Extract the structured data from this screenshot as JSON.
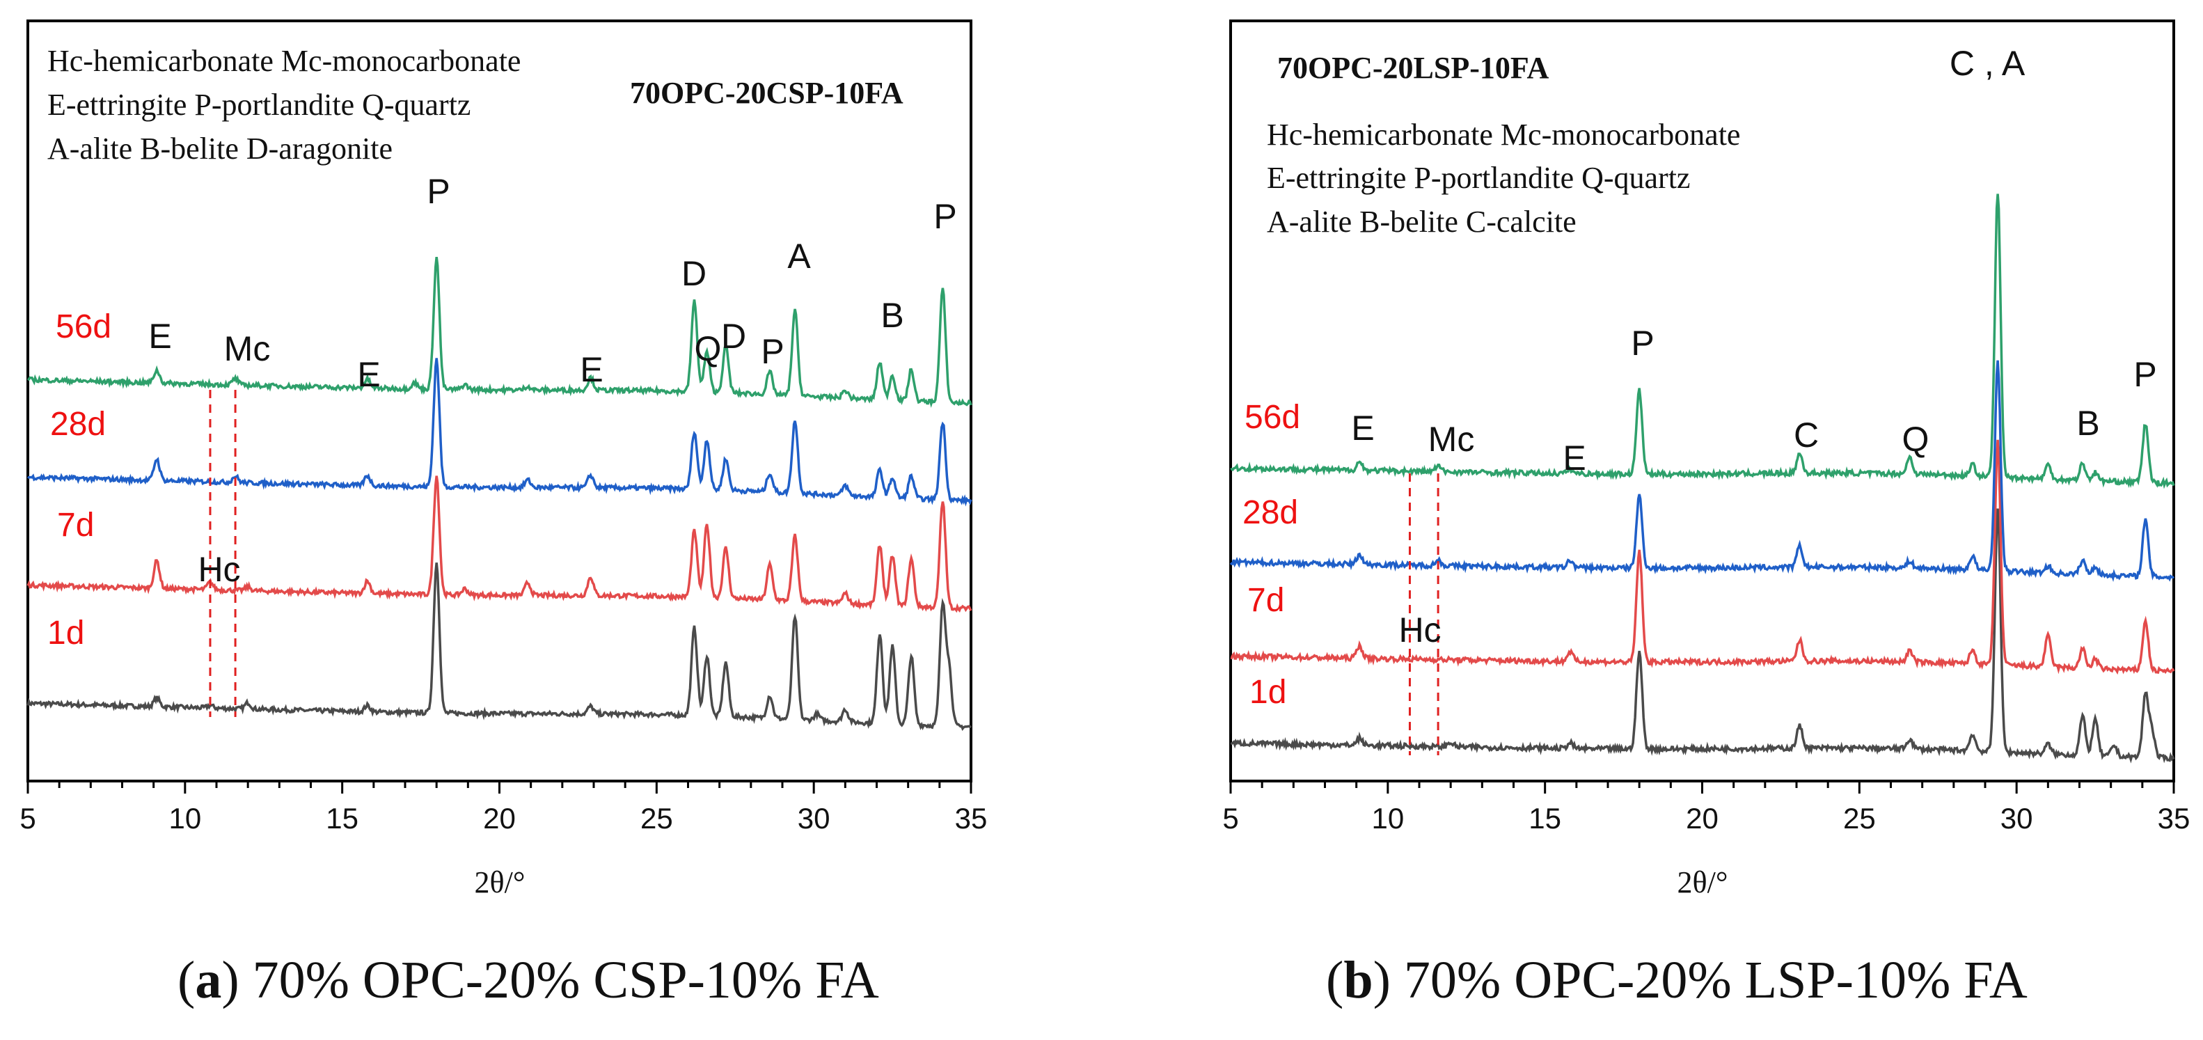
{
  "captions": {
    "a_letter": "a",
    "a_text": "70% OPC-20% CSP-10% FA",
    "b_letter": "b",
    "b_text": "70% OPC-20% LSP-10% FA"
  },
  "colors": {
    "56d": "#2ea06b",
    "28d": "#1f5fc8",
    "7d": "#e34a4a",
    "1d": "#4a4a4a",
    "ages": "#ee1111",
    "marker": "#e02020"
  },
  "chart_data": [
    {
      "type": "line",
      "panel": "a",
      "title": "70OPC-20CSP-10FA",
      "legend_lines": [
        "Hc-hemicarbonate Mc-monocarbonate",
        "E-ettringite P-portlandite Q-quartz",
        "A-alite B-belite D-aragonite"
      ],
      "xlabel": "2θ/°",
      "ylabel": "",
      "xlim": [
        5,
        35
      ],
      "xticks": [
        5,
        10,
        15,
        20,
        25,
        30,
        35
      ],
      "yticks": [],
      "series": [
        {
          "name": "56d",
          "offset": 3,
          "slope": 0.12,
          "peaks": [
            [
              9.1,
              0.1
            ],
            [
              11.6,
              0.05
            ],
            [
              15.8,
              0.07
            ],
            [
              17.3,
              0.05
            ],
            [
              18.0,
              1.05
            ],
            [
              18.9,
              0.04
            ],
            [
              20.9,
              0.03
            ],
            [
              22.9,
              0.1
            ],
            [
              26.2,
              0.72
            ],
            [
              26.6,
              0.32
            ],
            [
              27.2,
              0.37
            ],
            [
              28.6,
              0.18
            ],
            [
              29.4,
              0.68
            ],
            [
              31.0,
              0.06
            ],
            [
              32.1,
              0.3
            ],
            [
              32.5,
              0.2
            ],
            [
              33.1,
              0.25
            ],
            [
              34.1,
              0.9
            ]
          ]
        },
        {
          "name": "28d",
          "offset": 2,
          "slope": 0.12,
          "peaks": [
            [
              9.1,
              0.17
            ],
            [
              11.6,
              0.05
            ],
            [
              15.8,
              0.08
            ],
            [
              18.0,
              1.02
            ],
            [
              20.9,
              0.06
            ],
            [
              22.9,
              0.1
            ],
            [
              26.2,
              0.46
            ],
            [
              26.6,
              0.4
            ],
            [
              27.2,
              0.25
            ],
            [
              28.6,
              0.15
            ],
            [
              29.4,
              0.58
            ],
            [
              31.0,
              0.08
            ],
            [
              32.1,
              0.22
            ],
            [
              32.5,
              0.16
            ],
            [
              33.1,
              0.18
            ],
            [
              34.1,
              0.62
            ]
          ]
        },
        {
          "name": "7d",
          "offset": 1,
          "slope": 0.12,
          "peaks": [
            [
              9.1,
              0.22
            ],
            [
              10.8,
              0.06
            ],
            [
              12.0,
              0.03
            ],
            [
              15.8,
              0.1
            ],
            [
              18.0,
              0.95
            ],
            [
              18.9,
              0.05
            ],
            [
              20.9,
              0.1
            ],
            [
              22.9,
              0.15
            ],
            [
              26.2,
              0.53
            ],
            [
              26.6,
              0.58
            ],
            [
              27.2,
              0.4
            ],
            [
              28.6,
              0.28
            ],
            [
              29.4,
              0.52
            ],
            [
              31.0,
              0.08
            ],
            [
              32.1,
              0.48
            ],
            [
              32.5,
              0.4
            ],
            [
              33.1,
              0.38
            ],
            [
              34.1,
              0.85
            ]
          ]
        },
        {
          "name": "1d",
          "offset": 0,
          "slope": 0.12,
          "peaks": [
            [
              9.1,
              0.07
            ],
            [
              10.8,
              0.02
            ],
            [
              12.0,
              0.05
            ],
            [
              15.8,
              0.05
            ],
            [
              18.0,
              1.2
            ],
            [
              22.9,
              0.06
            ],
            [
              26.2,
              0.7
            ],
            [
              26.6,
              0.48
            ],
            [
              27.2,
              0.43
            ],
            [
              28.6,
              0.18
            ],
            [
              29.4,
              0.82
            ],
            [
              30.1,
              0.05
            ],
            [
              31.0,
              0.1
            ],
            [
              32.1,
              0.72
            ],
            [
              32.5,
              0.62
            ],
            [
              33.1,
              0.55
            ],
            [
              34.1,
              0.95
            ],
            [
              34.3,
              0.45
            ]
          ]
        }
      ],
      "age_labels": [
        "56d",
        "28d",
        "7d",
        "1d"
      ],
      "peak_labels": [
        "E",
        "Mc",
        "E",
        "P",
        "E",
        "D",
        "Q",
        "D",
        "P",
        "A",
        "B",
        "P",
        "Hc"
      ],
      "dashed_markers": [
        10.8,
        11.6
      ]
    },
    {
      "type": "line",
      "panel": "b",
      "title": "70OPC-20LSP-10FA",
      "legend_lines": [
        "Hc-hemicarbonate Mc-monocarbonate",
        "E-ettringite P-portlandite Q-quartz",
        "A-alite B-belite C-calcite"
      ],
      "xlabel": "2θ/°",
      "ylabel": "",
      "xlim": [
        5,
        35
      ],
      "xticks": [
        5,
        10,
        15,
        20,
        25,
        30,
        35
      ],
      "yticks": [],
      "series": [
        {
          "name": "56d",
          "offset": 3,
          "slope": 0.07,
          "peaks": [
            [
              9.1,
              0.06
            ],
            [
              11.6,
              0.04
            ],
            [
              15.8,
              0.03
            ],
            [
              18.0,
              0.6
            ],
            [
              23.1,
              0.14
            ],
            [
              26.6,
              0.12
            ],
            [
              28.6,
              0.08
            ],
            [
              29.4,
              2.05
            ],
            [
              31.0,
              0.1
            ],
            [
              32.1,
              0.12
            ],
            [
              32.5,
              0.06
            ],
            [
              34.1,
              0.42
            ]
          ]
        },
        {
          "name": "28d",
          "offset": 2,
          "slope": 0.07,
          "peaks": [
            [
              9.1,
              0.07
            ],
            [
              11.6,
              0.04
            ],
            [
              15.8,
              0.05
            ],
            [
              18.0,
              0.52
            ],
            [
              23.1,
              0.15
            ],
            [
              26.6,
              0.05
            ],
            [
              28.6,
              0.1
            ],
            [
              29.4,
              1.5
            ],
            [
              31.0,
              0.05
            ],
            [
              32.1,
              0.1
            ],
            [
              32.5,
              0.06
            ],
            [
              34.1,
              0.4
            ]
          ]
        },
        {
          "name": "7d",
          "offset": 1,
          "slope": 0.07,
          "peaks": [
            [
              9.1,
              0.09
            ],
            [
              15.8,
              0.07
            ],
            [
              18.0,
              0.8
            ],
            [
              23.1,
              0.15
            ],
            [
              26.6,
              0.08
            ],
            [
              28.6,
              0.1
            ],
            [
              29.4,
              1.6
            ],
            [
              31.0,
              0.22
            ],
            [
              32.1,
              0.14
            ],
            [
              32.5,
              0.07
            ],
            [
              34.1,
              0.35
            ]
          ]
        },
        {
          "name": "1d",
          "offset": 0,
          "slope": 0.07,
          "peaks": [
            [
              9.1,
              0.05
            ],
            [
              12.0,
              0.03
            ],
            [
              15.8,
              0.04
            ],
            [
              18.0,
              0.7
            ],
            [
              23.1,
              0.16
            ],
            [
              26.6,
              0.07
            ],
            [
              28.6,
              0.12
            ],
            [
              29.4,
              1.75
            ],
            [
              31.0,
              0.07
            ],
            [
              32.1,
              0.28
            ],
            [
              32.5,
              0.26
            ],
            [
              33.1,
              0.08
            ],
            [
              34.1,
              0.45
            ],
            [
              34.3,
              0.2
            ]
          ]
        }
      ],
      "age_labels": [
        "56d",
        "28d",
        "7d",
        "1d"
      ],
      "peak_labels": [
        "C , A",
        "P",
        "E",
        "Mc",
        "E",
        "C",
        "Q",
        "B",
        "P",
        "Hc"
      ],
      "dashed_markers": [
        10.7,
        11.6
      ]
    }
  ]
}
